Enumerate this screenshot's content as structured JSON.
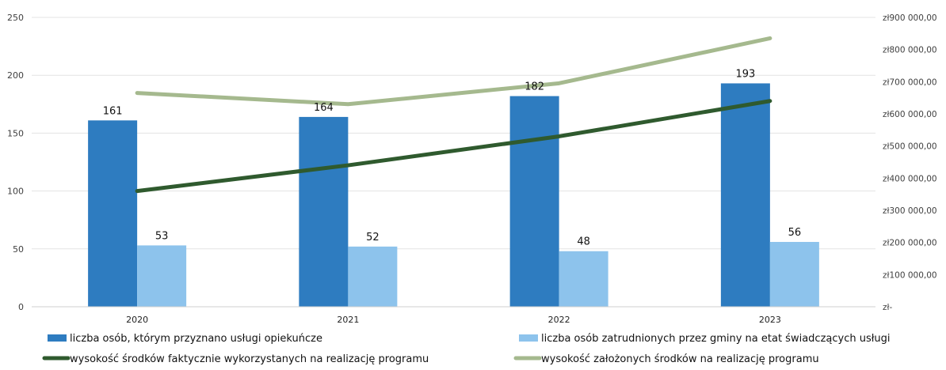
{
  "chart_data": {
    "type": "bar",
    "categories": [
      "2020",
      "2021",
      "2022",
      "2023"
    ],
    "series": [
      {
        "name": "liczba osób, którym przyznano usługi opiekuńcze",
        "kind": "bar",
        "axis": "left",
        "color": "#2e7cc0",
        "values": [
          161,
          164,
          182,
          193
        ]
      },
      {
        "name": "liczba osób zatrudnionych przez gminy na etat świadczących usługi",
        "kind": "bar",
        "axis": "left",
        "color": "#8dc3ec",
        "values": [
          53,
          52,
          48,
          56
        ]
      },
      {
        "name": "wysokość środków faktycznie wykorzystanych na realizację programu",
        "kind": "line",
        "axis": "right",
        "color": "#2f5a2e",
        "values": [
          360000,
          440000,
          530000,
          640000
        ]
      },
      {
        "name": "wysokość założonych środków na realizację programu",
        "kind": "line",
        "axis": "right",
        "color": "#a5b98e",
        "values": [
          665000,
          630000,
          695000,
          835000
        ]
      }
    ],
    "y_left": {
      "range": [
        0,
        250
      ],
      "ticks": [
        "0",
        "50",
        "100",
        "150",
        "200",
        "250"
      ]
    },
    "y_right": {
      "range": [
        0,
        900000
      ],
      "ticks": [
        "zł-",
        "zł100 000,00",
        "zł200 000,00",
        "zł300 000,00",
        "zł400 000,00",
        "zł500 000,00",
        "zł600 000,00",
        "zł700 000,00",
        "zł800 000,00",
        "zł900 000,00"
      ]
    },
    "data_labels": {
      "bar_series": [
        0,
        1
      ]
    },
    "grid": true,
    "legend_position": "bottom"
  }
}
